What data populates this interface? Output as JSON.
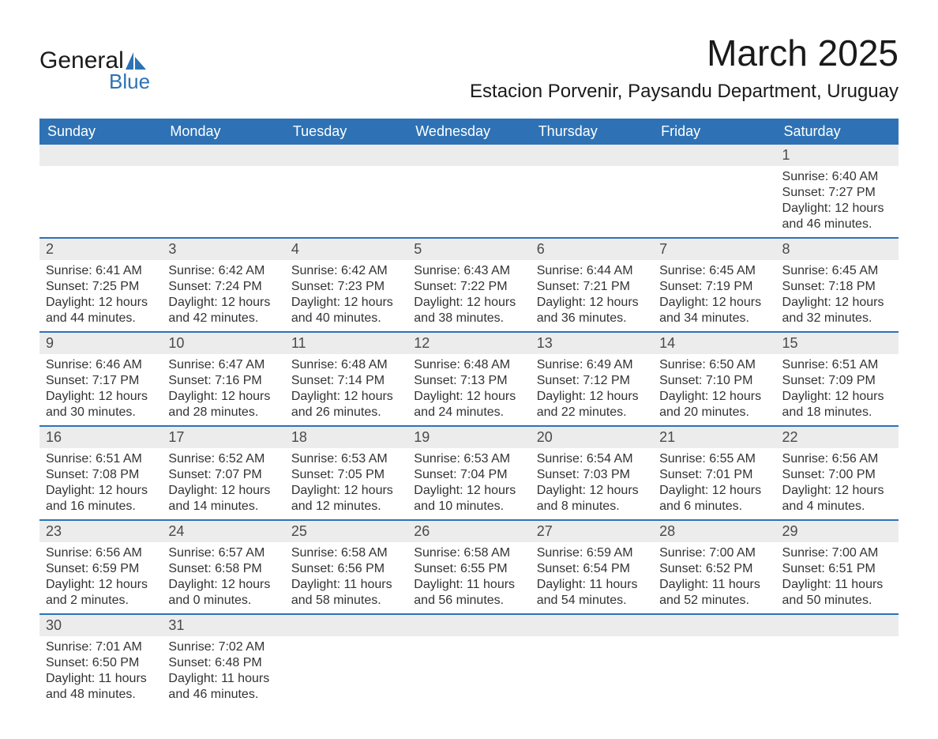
{
  "logo": {
    "text1": "General",
    "text2": "Blue",
    "sail_color": "#2e72b5"
  },
  "title": "March 2025",
  "location": "Estacion Porvenir, Paysandu Department, Uruguay",
  "colors": {
    "header_bg": "#2e72b5",
    "header_text": "#ffffff",
    "daynum_bg": "#ececec",
    "daynum_text": "#4a4a4a",
    "body_text": "#333333",
    "row_border": "#2e72b5",
    "page_bg": "#ffffff"
  },
  "typography": {
    "month_title_size_pt": 34,
    "location_size_pt": 18,
    "weekday_header_size_pt": 14,
    "daynum_size_pt": 14,
    "cell_text_size_pt": 12,
    "font_family": "Arial"
  },
  "weekdays": [
    "Sunday",
    "Monday",
    "Tuesday",
    "Wednesday",
    "Thursday",
    "Friday",
    "Saturday"
  ],
  "weeks": [
    [
      null,
      null,
      null,
      null,
      null,
      null,
      {
        "n": "1",
        "sunrise": "Sunrise: 6:40 AM",
        "sunset": "Sunset: 7:27 PM",
        "daylight": "Daylight: 12 hours and 46 minutes."
      }
    ],
    [
      {
        "n": "2",
        "sunrise": "Sunrise: 6:41 AM",
        "sunset": "Sunset: 7:25 PM",
        "daylight": "Daylight: 12 hours and 44 minutes."
      },
      {
        "n": "3",
        "sunrise": "Sunrise: 6:42 AM",
        "sunset": "Sunset: 7:24 PM",
        "daylight": "Daylight: 12 hours and 42 minutes."
      },
      {
        "n": "4",
        "sunrise": "Sunrise: 6:42 AM",
        "sunset": "Sunset: 7:23 PM",
        "daylight": "Daylight: 12 hours and 40 minutes."
      },
      {
        "n": "5",
        "sunrise": "Sunrise: 6:43 AM",
        "sunset": "Sunset: 7:22 PM",
        "daylight": "Daylight: 12 hours and 38 minutes."
      },
      {
        "n": "6",
        "sunrise": "Sunrise: 6:44 AM",
        "sunset": "Sunset: 7:21 PM",
        "daylight": "Daylight: 12 hours and 36 minutes."
      },
      {
        "n": "7",
        "sunrise": "Sunrise: 6:45 AM",
        "sunset": "Sunset: 7:19 PM",
        "daylight": "Daylight: 12 hours and 34 minutes."
      },
      {
        "n": "8",
        "sunrise": "Sunrise: 6:45 AM",
        "sunset": "Sunset: 7:18 PM",
        "daylight": "Daylight: 12 hours and 32 minutes."
      }
    ],
    [
      {
        "n": "9",
        "sunrise": "Sunrise: 6:46 AM",
        "sunset": "Sunset: 7:17 PM",
        "daylight": "Daylight: 12 hours and 30 minutes."
      },
      {
        "n": "10",
        "sunrise": "Sunrise: 6:47 AM",
        "sunset": "Sunset: 7:16 PM",
        "daylight": "Daylight: 12 hours and 28 minutes."
      },
      {
        "n": "11",
        "sunrise": "Sunrise: 6:48 AM",
        "sunset": "Sunset: 7:14 PM",
        "daylight": "Daylight: 12 hours and 26 minutes."
      },
      {
        "n": "12",
        "sunrise": "Sunrise: 6:48 AM",
        "sunset": "Sunset: 7:13 PM",
        "daylight": "Daylight: 12 hours and 24 minutes."
      },
      {
        "n": "13",
        "sunrise": "Sunrise: 6:49 AM",
        "sunset": "Sunset: 7:12 PM",
        "daylight": "Daylight: 12 hours and 22 minutes."
      },
      {
        "n": "14",
        "sunrise": "Sunrise: 6:50 AM",
        "sunset": "Sunset: 7:10 PM",
        "daylight": "Daylight: 12 hours and 20 minutes."
      },
      {
        "n": "15",
        "sunrise": "Sunrise: 6:51 AM",
        "sunset": "Sunset: 7:09 PM",
        "daylight": "Daylight: 12 hours and 18 minutes."
      }
    ],
    [
      {
        "n": "16",
        "sunrise": "Sunrise: 6:51 AM",
        "sunset": "Sunset: 7:08 PM",
        "daylight": "Daylight: 12 hours and 16 minutes."
      },
      {
        "n": "17",
        "sunrise": "Sunrise: 6:52 AM",
        "sunset": "Sunset: 7:07 PM",
        "daylight": "Daylight: 12 hours and 14 minutes."
      },
      {
        "n": "18",
        "sunrise": "Sunrise: 6:53 AM",
        "sunset": "Sunset: 7:05 PM",
        "daylight": "Daylight: 12 hours and 12 minutes."
      },
      {
        "n": "19",
        "sunrise": "Sunrise: 6:53 AM",
        "sunset": "Sunset: 7:04 PM",
        "daylight": "Daylight: 12 hours and 10 minutes."
      },
      {
        "n": "20",
        "sunrise": "Sunrise: 6:54 AM",
        "sunset": "Sunset: 7:03 PM",
        "daylight": "Daylight: 12 hours and 8 minutes."
      },
      {
        "n": "21",
        "sunrise": "Sunrise: 6:55 AM",
        "sunset": "Sunset: 7:01 PM",
        "daylight": "Daylight: 12 hours and 6 minutes."
      },
      {
        "n": "22",
        "sunrise": "Sunrise: 6:56 AM",
        "sunset": "Sunset: 7:00 PM",
        "daylight": "Daylight: 12 hours and 4 minutes."
      }
    ],
    [
      {
        "n": "23",
        "sunrise": "Sunrise: 6:56 AM",
        "sunset": "Sunset: 6:59 PM",
        "daylight": "Daylight: 12 hours and 2 minutes."
      },
      {
        "n": "24",
        "sunrise": "Sunrise: 6:57 AM",
        "sunset": "Sunset: 6:58 PM",
        "daylight": "Daylight: 12 hours and 0 minutes."
      },
      {
        "n": "25",
        "sunrise": "Sunrise: 6:58 AM",
        "sunset": "Sunset: 6:56 PM",
        "daylight": "Daylight: 11 hours and 58 minutes."
      },
      {
        "n": "26",
        "sunrise": "Sunrise: 6:58 AM",
        "sunset": "Sunset: 6:55 PM",
        "daylight": "Daylight: 11 hours and 56 minutes."
      },
      {
        "n": "27",
        "sunrise": "Sunrise: 6:59 AM",
        "sunset": "Sunset: 6:54 PM",
        "daylight": "Daylight: 11 hours and 54 minutes."
      },
      {
        "n": "28",
        "sunrise": "Sunrise: 7:00 AM",
        "sunset": "Sunset: 6:52 PM",
        "daylight": "Daylight: 11 hours and 52 minutes."
      },
      {
        "n": "29",
        "sunrise": "Sunrise: 7:00 AM",
        "sunset": "Sunset: 6:51 PM",
        "daylight": "Daylight: 11 hours and 50 minutes."
      }
    ],
    [
      {
        "n": "30",
        "sunrise": "Sunrise: 7:01 AM",
        "sunset": "Sunset: 6:50 PM",
        "daylight": "Daylight: 11 hours and 48 minutes."
      },
      {
        "n": "31",
        "sunrise": "Sunrise: 7:02 AM",
        "sunset": "Sunset: 6:48 PM",
        "daylight": "Daylight: 11 hours and 46 minutes."
      },
      null,
      null,
      null,
      null,
      null
    ]
  ]
}
